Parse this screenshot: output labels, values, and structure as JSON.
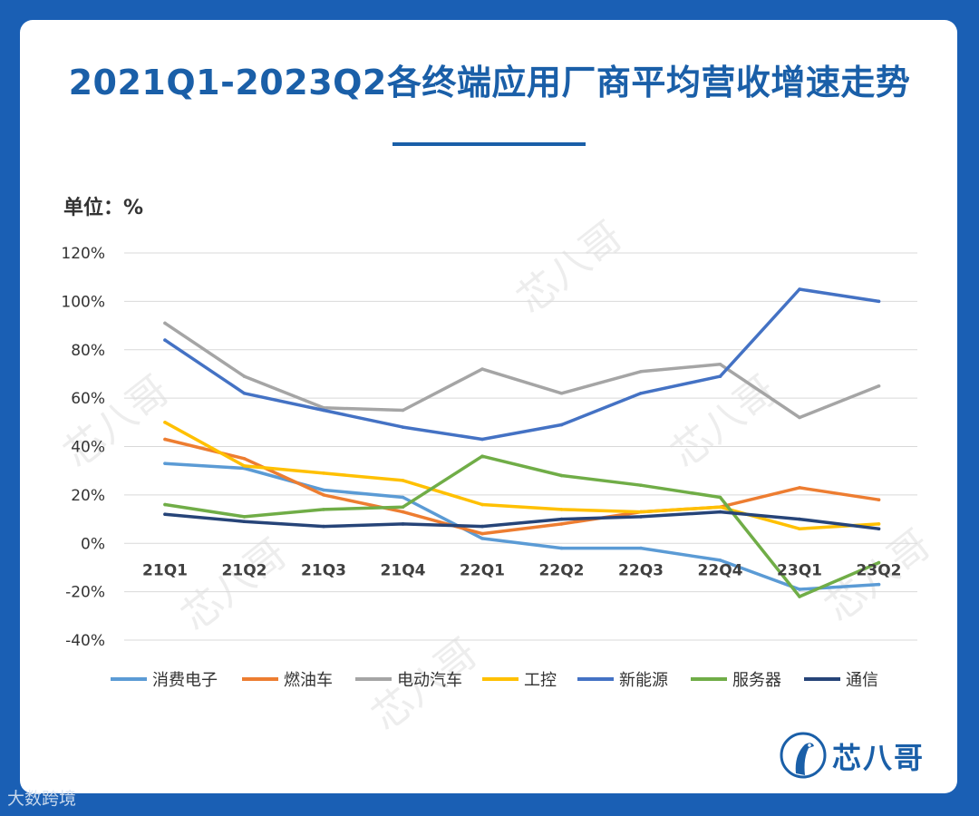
{
  "title": "2021Q1-2023Q2各终端应用厂商平均营收增速走势",
  "unit_label": "单位：%",
  "watermark_text": "芯八哥",
  "brand": {
    "name": "芯八哥",
    "color": "#1a5fa8"
  },
  "credit": "大数跨境",
  "chart_data": {
    "type": "line",
    "title": "2021Q1-2023Q2各终端应用厂商平均营收增速走势",
    "ylabel": "单位：%",
    "ylim": [
      -40,
      120
    ],
    "yticks": [
      -40,
      -20,
      0,
      20,
      40,
      60,
      80,
      100,
      120
    ],
    "ytick_labels": [
      "-40%",
      "-20%",
      "0%",
      "20%",
      "40%",
      "60%",
      "80%",
      "100%",
      "120%"
    ],
    "grid": true,
    "legend_position": "bottom",
    "categories": [
      "21Q1",
      "21Q2",
      "21Q3",
      "21Q4",
      "22Q1",
      "22Q2",
      "22Q3",
      "22Q4",
      "23Q1",
      "23Q2"
    ],
    "series": [
      {
        "name": "消费电子",
        "color": "#5b9bd5",
        "values": [
          33,
          31,
          22,
          19,
          2,
          -2,
          -2,
          -7,
          -19,
          -17
        ]
      },
      {
        "name": "燃油车",
        "color": "#ed7d31",
        "values": [
          43,
          35,
          20,
          13,
          4,
          8,
          13,
          15,
          23,
          18
        ]
      },
      {
        "name": "电动汽车",
        "color": "#a5a5a5",
        "values": [
          91,
          69,
          56,
          55,
          72,
          62,
          71,
          74,
          52,
          65
        ]
      },
      {
        "name": "工控",
        "color": "#ffc000",
        "values": [
          50,
          32,
          29,
          26,
          16,
          14,
          13,
          15,
          6,
          8
        ]
      },
      {
        "name": "新能源",
        "color": "#4472c4",
        "values": [
          84,
          62,
          55,
          48,
          43,
          49,
          62,
          69,
          105,
          100
        ]
      },
      {
        "name": "服务器",
        "color": "#70ad47",
        "values": [
          16,
          11,
          14,
          15,
          36,
          28,
          24,
          19,
          -22,
          -8
        ]
      },
      {
        "name": "通信",
        "color": "#264478",
        "values": [
          12,
          9,
          7,
          8,
          7,
          10,
          11,
          13,
          10,
          6
        ]
      }
    ]
  }
}
